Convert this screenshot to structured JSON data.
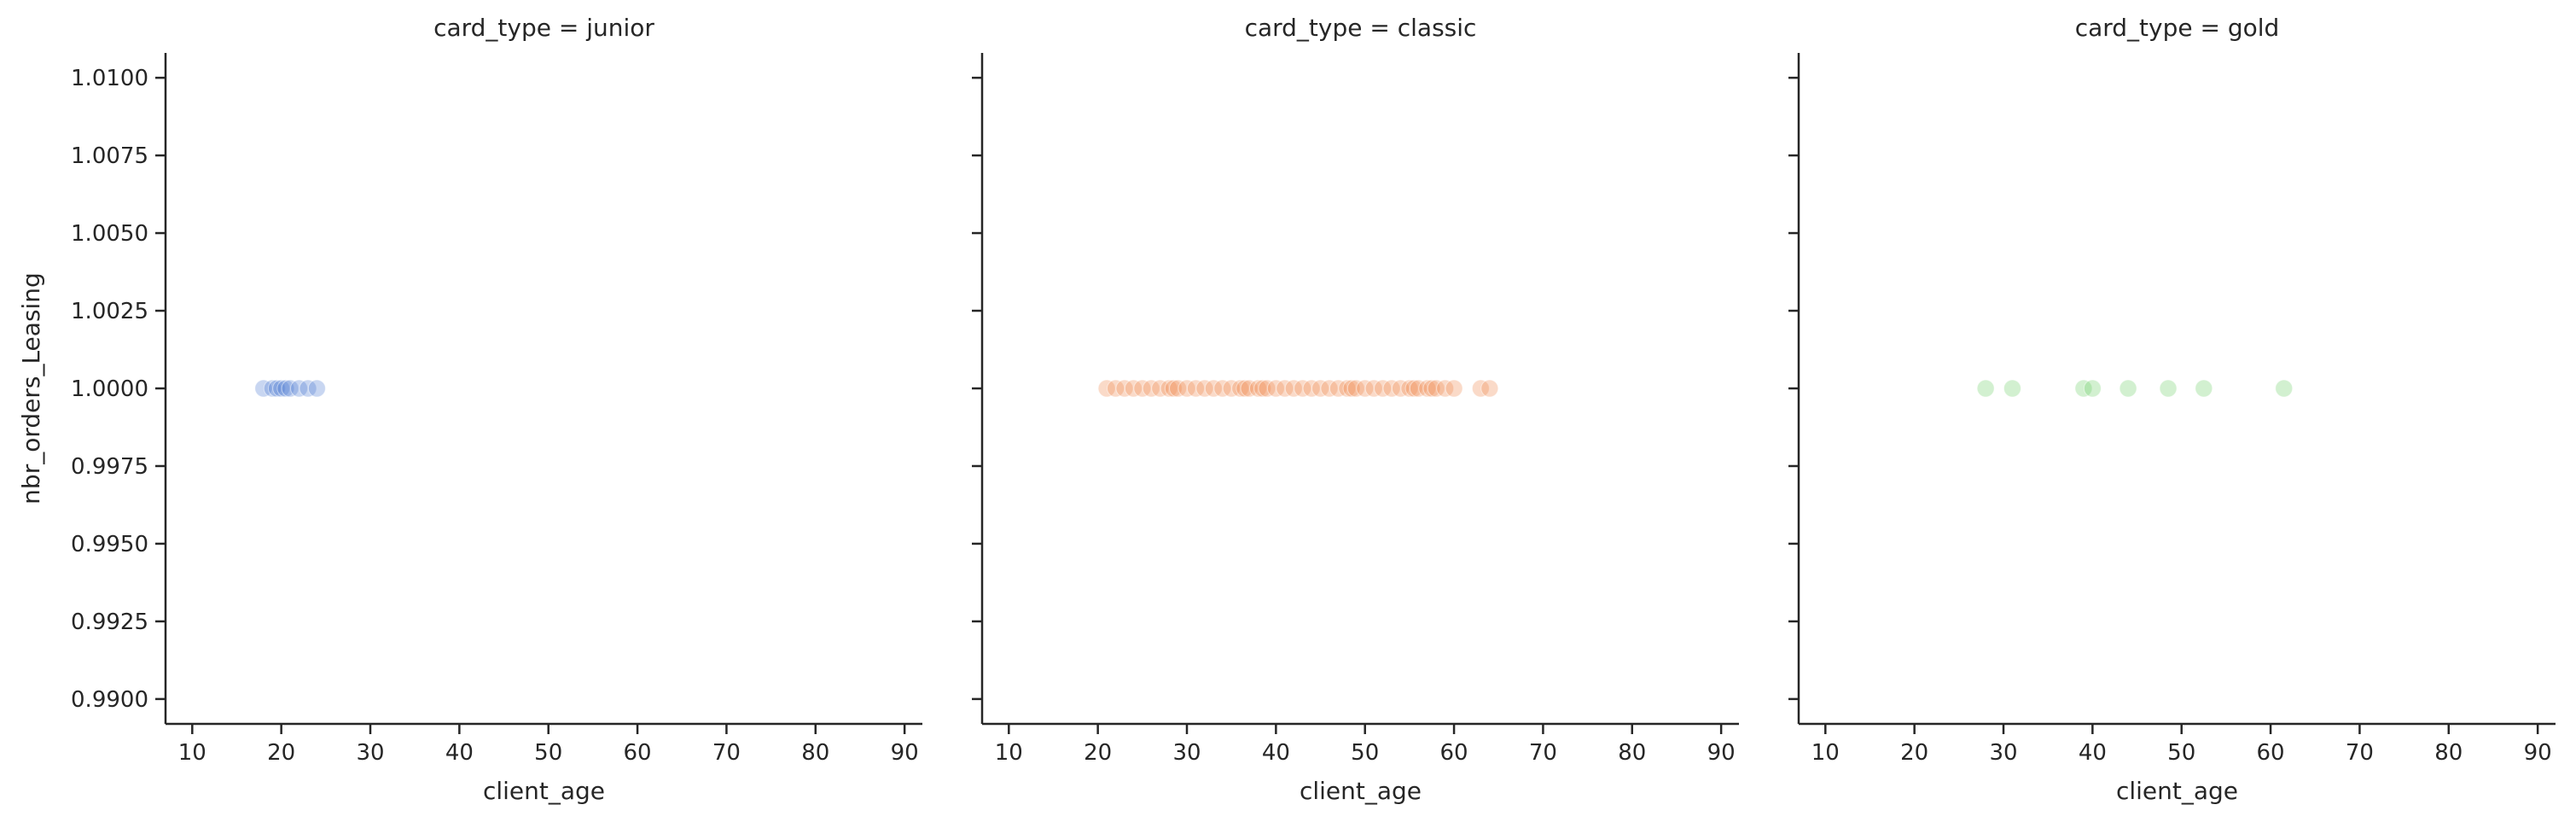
{
  "chart_data": {
    "type": "scatter",
    "layout": "facet-grid",
    "facet_variable": "card_type",
    "xlabel": "client_age",
    "ylabel": "nbr_orders_Leasing",
    "xlim": [
      7,
      92
    ],
    "ylim": [
      0.9892,
      1.0108
    ],
    "x_ticks": [
      10,
      20,
      30,
      40,
      50,
      60,
      70,
      80,
      90
    ],
    "y_ticks": [
      0.99,
      0.9925,
      0.995,
      0.9975,
      1.0,
      1.0025,
      1.005,
      1.0075,
      1.01
    ],
    "y_tick_labels": [
      "0.9900",
      "0.9925",
      "0.9950",
      "0.9975",
      "1.0000",
      "1.0025",
      "1.0050",
      "1.0075",
      "1.0100"
    ],
    "grid": false,
    "shared_y": true,
    "marker_alpha": 0.3,
    "panels": [
      {
        "title": "card_type = junior",
        "color": "#4878d0",
        "x": [
          18,
          19,
          19.5,
          20,
          20.5,
          21,
          22,
          23,
          24
        ],
        "y": [
          1,
          1,
          1,
          1,
          1,
          1,
          1,
          1,
          1
        ]
      },
      {
        "title": "card_type = classic",
        "color": "#ee854a",
        "x": [
          21,
          22,
          23,
          24,
          25,
          26,
          27,
          28,
          28.5,
          29,
          30,
          31,
          32,
          33,
          34,
          35,
          36,
          36.5,
          37,
          38,
          38.5,
          39,
          40,
          41,
          42,
          43,
          44,
          45,
          46,
          47,
          48,
          48.5,
          49,
          50,
          51,
          52,
          53,
          54,
          55,
          55.5,
          56,
          57,
          57.5,
          58,
          59,
          60,
          63,
          64
        ],
        "y": [
          1,
          1,
          1,
          1,
          1,
          1,
          1,
          1,
          1,
          1,
          1,
          1,
          1,
          1,
          1,
          1,
          1,
          1,
          1,
          1,
          1,
          1,
          1,
          1,
          1,
          1,
          1,
          1,
          1,
          1,
          1,
          1,
          1,
          1,
          1,
          1,
          1,
          1,
          1,
          1,
          1,
          1,
          1,
          1,
          1,
          1,
          1,
          1
        ]
      },
      {
        "title": "card_type = gold",
        "color": "#6acc64",
        "x": [
          28,
          31,
          39,
          40,
          44,
          48.5,
          52.5,
          61.5
        ],
        "y": [
          1,
          1,
          1,
          1,
          1,
          1,
          1,
          1
        ]
      }
    ]
  }
}
